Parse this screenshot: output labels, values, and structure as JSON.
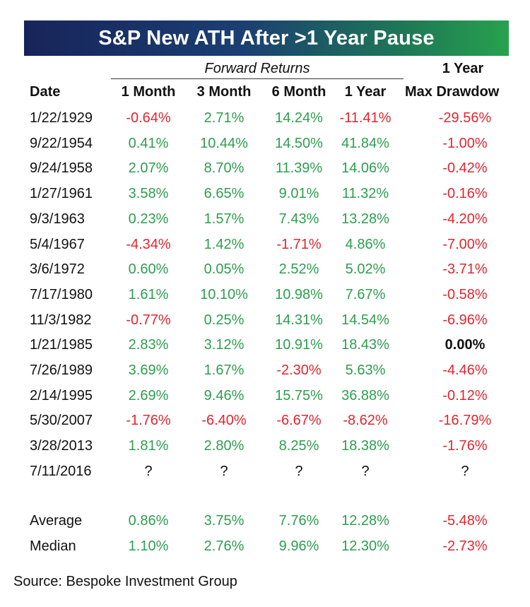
{
  "title": "S&P New ATH After >1 Year Pause",
  "group_label": "Forward Returns",
  "extra_header_top": "1 Year",
  "headers": [
    "Date",
    "1 Month",
    "3 Month",
    "6 Month",
    "1 Year",
    "Max Drawdow"
  ],
  "rows": [
    {
      "date": "1/22/1929",
      "m1": "-0.64%",
      "m3": "2.71%",
      "m6": "14.24%",
      "y1": "-11.41%",
      "dd": "-29.56%"
    },
    {
      "date": "9/22/1954",
      "m1": "0.41%",
      "m3": "10.44%",
      "m6": "14.50%",
      "y1": "41.84%",
      "dd": "-1.00%"
    },
    {
      "date": "9/24/1958",
      "m1": "2.07%",
      "m3": "8.70%",
      "m6": "11.39%",
      "y1": "14.06%",
      "dd": "-0.42%"
    },
    {
      "date": "1/27/1961",
      "m1": "3.58%",
      "m3": "6.65%",
      "m6": "9.01%",
      "y1": "11.32%",
      "dd": "-0.16%"
    },
    {
      "date": "9/3/1963",
      "m1": "0.23%",
      "m3": "1.57%",
      "m6": "7.43%",
      "y1": "13.28%",
      "dd": "-4.20%"
    },
    {
      "date": "5/4/1967",
      "m1": "-4.34%",
      "m3": "1.42%",
      "m6": "-1.71%",
      "y1": "4.86%",
      "dd": "-7.00%"
    },
    {
      "date": "3/6/1972",
      "m1": "0.60%",
      "m3": "0.05%",
      "m6": "2.52%",
      "y1": "5.02%",
      "dd": "-3.71%"
    },
    {
      "date": "7/17/1980",
      "m1": "1.61%",
      "m3": "10.10%",
      "m6": "10.98%",
      "y1": "7.67%",
      "dd": "-0.58%"
    },
    {
      "date": "11/3/1982",
      "m1": "-0.77%",
      "m3": "0.25%",
      "m6": "14.31%",
      "y1": "14.54%",
      "dd": "-6.96%"
    },
    {
      "date": "1/21/1985",
      "m1": "2.83%",
      "m3": "3.12%",
      "m6": "10.91%",
      "y1": "18.43%",
      "dd": "0.00%"
    },
    {
      "date": "7/26/1989",
      "m1": "3.69%",
      "m3": "1.67%",
      "m6": "-2.30%",
      "y1": "5.63%",
      "dd": "-4.46%"
    },
    {
      "date": "2/14/1995",
      "m1": "2.69%",
      "m3": "9.46%",
      "m6": "15.75%",
      "y1": "36.88%",
      "dd": "-0.12%"
    },
    {
      "date": "5/30/2007",
      "m1": "-1.76%",
      "m3": "-6.40%",
      "m6": "-6.67%",
      "y1": "-8.62%",
      "dd": "-16.79%"
    },
    {
      "date": "3/28/2013",
      "m1": "1.81%",
      "m3": "2.80%",
      "m6": "8.25%",
      "y1": "18.38%",
      "dd": "-1.76%"
    },
    {
      "date": "7/11/2016",
      "m1": "?",
      "m3": "?",
      "m6": "?",
      "y1": "?",
      "dd": "?"
    }
  ],
  "summary": [
    {
      "date": "Average",
      "m1": "0.86%",
      "m3": "3.75%",
      "m6": "7.76%",
      "y1": "12.28%",
      "dd": "-5.48%"
    },
    {
      "date": "Median",
      "m1": "1.10%",
      "m3": "2.76%",
      "m6": "9.96%",
      "y1": "12.30%",
      "dd": "-2.73%"
    }
  ],
  "source": "Source: Bespoke Investment Group",
  "colors": {
    "positive": "#2e9e4f",
    "negative": "#e0262f",
    "neutral": "#111111",
    "title_left": "#17245a",
    "title_right": "#27a24e"
  }
}
